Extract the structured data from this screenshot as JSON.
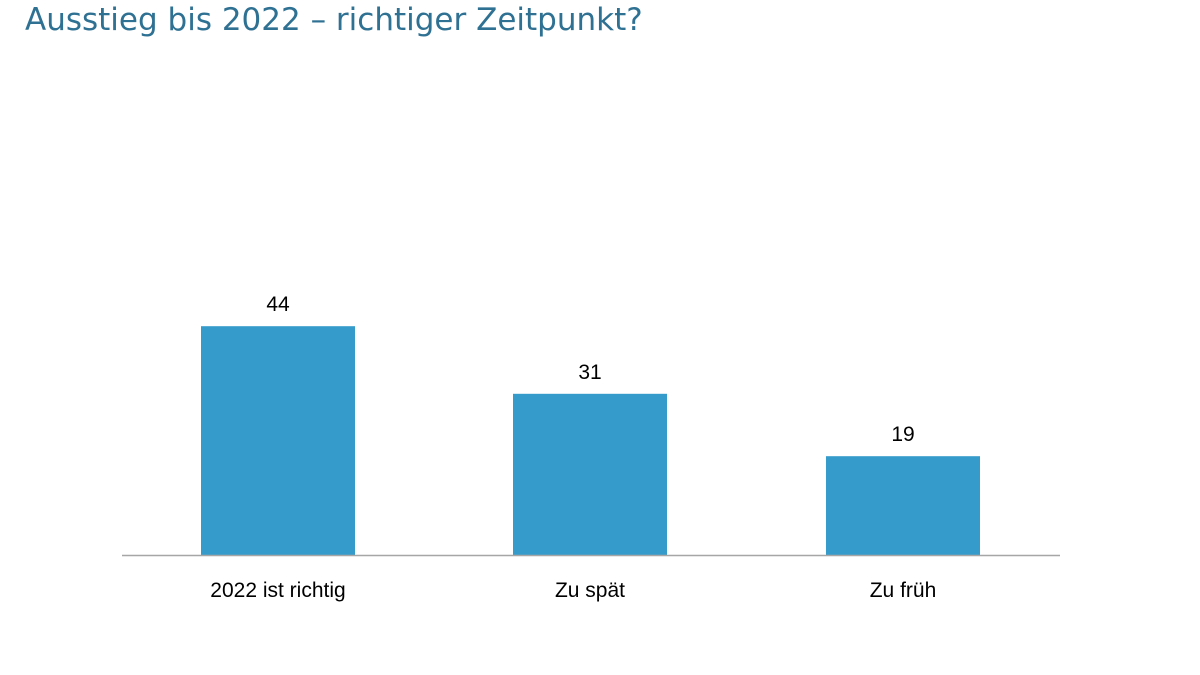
{
  "chart_data": {
    "type": "bar",
    "title": "Ausstieg bis 2022 – richtiger Zeitpunkt?",
    "categories": [
      "2022 ist richtig",
      "Zu spät",
      "Zu früh"
    ],
    "values": [
      44,
      31,
      19
    ],
    "data_labels": [
      "44",
      "31",
      "19"
    ],
    "xlabel": "",
    "ylabel": "",
    "ylim": [
      0,
      50
    ],
    "grid": false,
    "legend": "none",
    "colors": {
      "bar": "#359bcb",
      "title": "#2f7193",
      "axis": "#a6a6a6"
    }
  }
}
